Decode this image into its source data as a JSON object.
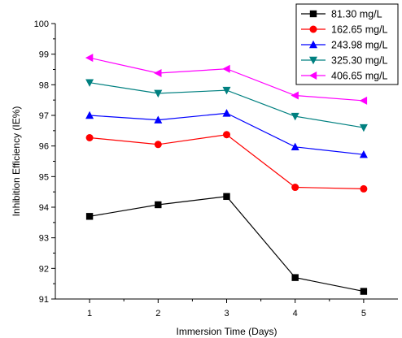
{
  "chart_data": {
    "type": "line",
    "xlabel": "Immersion Time (Days)",
    "ylabel": "Inhibition Efficiency (IE%)",
    "xlim": [
      0.5,
      5.5
    ],
    "ylim": [
      91,
      100
    ],
    "xticks": [
      1,
      2,
      3,
      4,
      5
    ],
    "yticks": [
      91,
      92,
      93,
      94,
      95,
      96,
      97,
      98,
      99,
      100
    ],
    "grid": false,
    "legend_position": "top-right",
    "x": [
      1,
      2,
      3,
      4,
      5
    ],
    "series": [
      {
        "name": "81.30 mg/L",
        "color": "#000000",
        "marker": "square",
        "values": [
          93.7,
          94.08,
          94.35,
          91.7,
          91.25
        ]
      },
      {
        "name": "162.65 mg/L",
        "color": "#ff0000",
        "marker": "circle",
        "values": [
          96.27,
          96.05,
          96.37,
          94.65,
          94.6
        ]
      },
      {
        "name": "243.98 mg/L",
        "color": "#0000ff",
        "marker": "triangle-up",
        "values": [
          97.0,
          96.85,
          97.07,
          95.97,
          95.72
        ]
      },
      {
        "name": "325.30 mg/L",
        "color": "#008080",
        "marker": "triangle-down",
        "values": [
          98.07,
          97.72,
          97.82,
          96.97,
          96.6
        ]
      },
      {
        "name": "406.65 mg/L",
        "color": "#ff00ff",
        "marker": "triangle-left",
        "values": [
          98.88,
          98.38,
          98.52,
          97.65,
          97.48
        ]
      }
    ]
  }
}
